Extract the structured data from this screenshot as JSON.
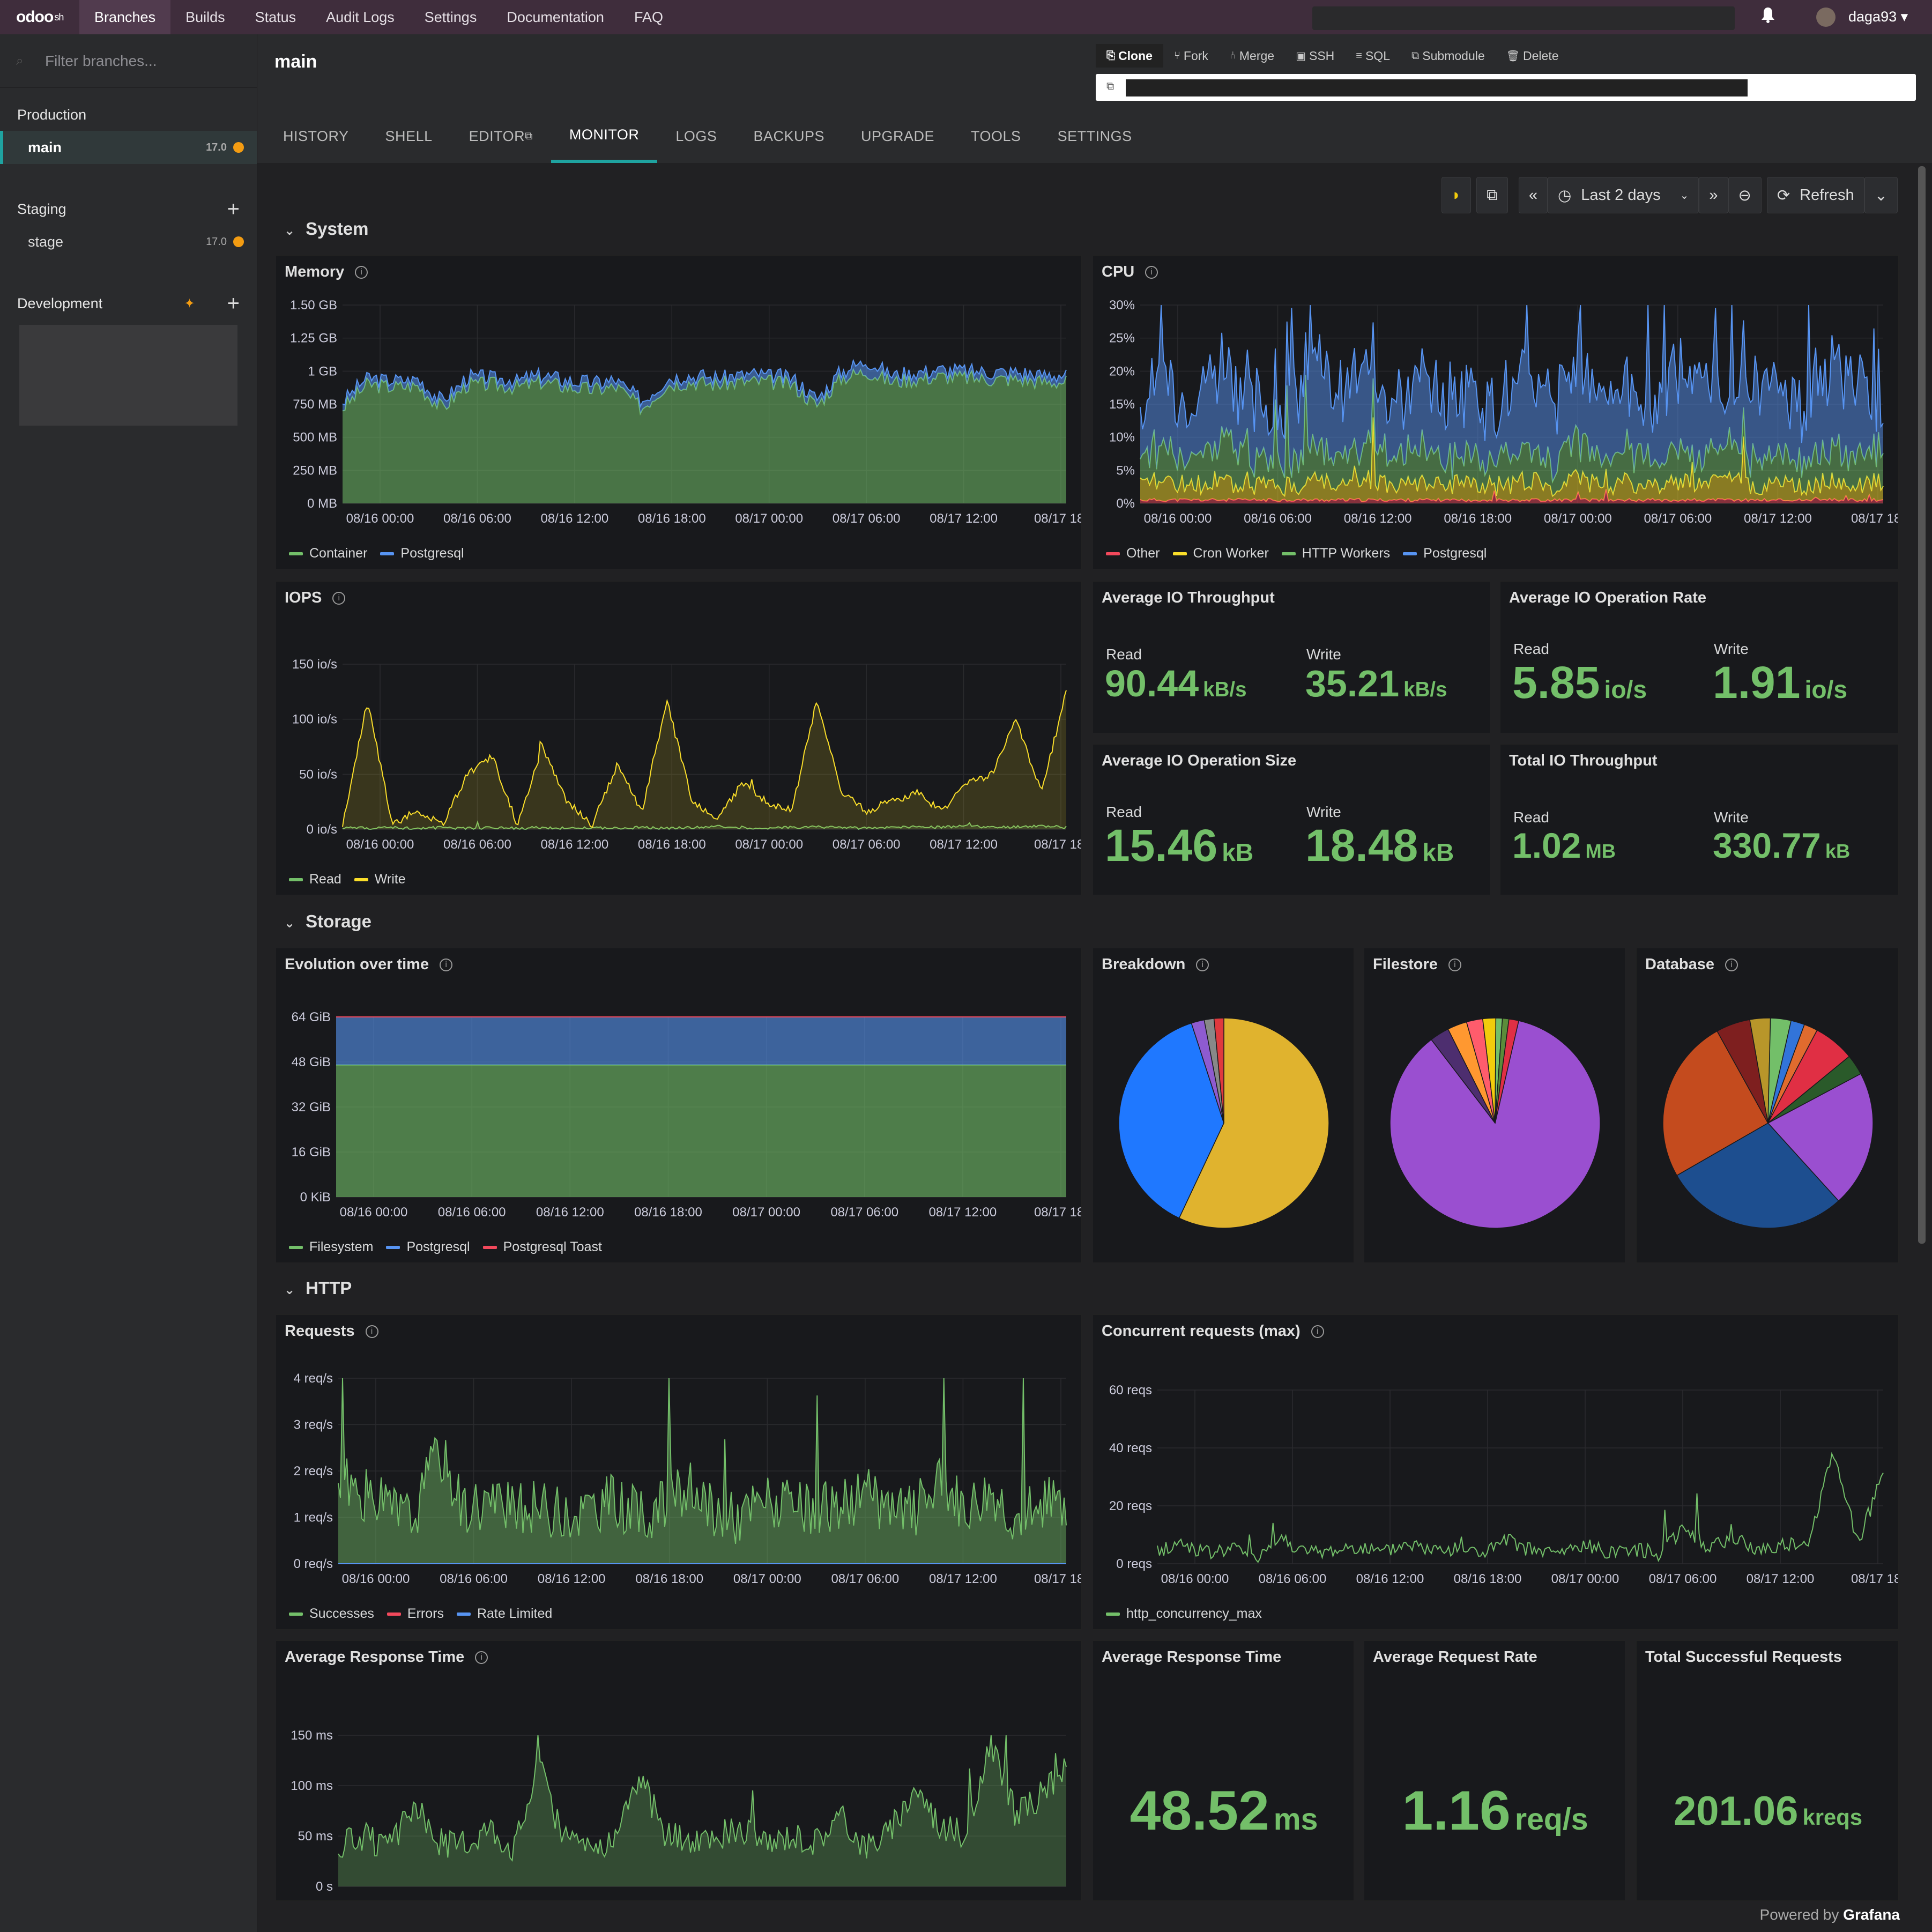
{
  "app": {
    "logo": "odoo",
    "logo_suffix": "sh",
    "user": "daga93 ▾"
  },
  "topnav": [
    "Branches",
    "Builds",
    "Status",
    "Audit Logs",
    "Settings",
    "Documentation",
    "FAQ"
  ],
  "sidebar": {
    "filter_placeholder": "Filter branches...",
    "production": {
      "title": "Production",
      "branches": [
        {
          "name": "main",
          "version": "17.0"
        }
      ]
    },
    "staging": {
      "title": "Staging",
      "branches": [
        {
          "name": "stage",
          "version": "17.0"
        }
      ]
    },
    "development": {
      "title": "Development"
    }
  },
  "header": {
    "title": "main",
    "actions": [
      "Clone",
      "Fork",
      "Merge",
      "SSH",
      "SQL",
      "Submodule",
      "Delete"
    ]
  },
  "tabs": [
    "HISTORY",
    "SHELL",
    "EDITOR",
    "MONITOR",
    "LOGS",
    "BACKUPS",
    "UPGRADE",
    "TOOLS",
    "SETTINGS"
  ],
  "toolbar": {
    "time_range": "Last 2 days",
    "refresh": "Refresh"
  },
  "colors": {
    "green": "#73bf69",
    "blue": "#5794f2",
    "yellow": "#fade2a",
    "red": "#f2495c",
    "accent": "#1fa3a0",
    "orange": "#f39c12"
  },
  "sections": {
    "system": "System",
    "storage": "Storage",
    "http": "HTTP"
  },
  "xticks": [
    "08/16 00:00",
    "08/16 06:00",
    "08/16 12:00",
    "08/16 18:00",
    "08/17 00:00",
    "08/17 06:00",
    "08/17 12:00",
    "08/17 18:"
  ],
  "panels": {
    "memory": {
      "title": "Memory",
      "yticks": [
        "1.50 GB",
        "1.25 GB",
        "1 GB",
        "750 MB",
        "500 MB",
        "250 MB",
        "0 MB"
      ],
      "legend": [
        "Container",
        "Postgresql"
      ]
    },
    "cpu": {
      "title": "CPU",
      "yticks": [
        "30%",
        "25%",
        "20%",
        "15%",
        "10%",
        "5%",
        "0%"
      ],
      "legend": [
        "Other",
        "Cron Worker",
        "HTTP Workers",
        "Postgresql"
      ]
    },
    "iops": {
      "title": "IOPS",
      "yticks": [
        "150 io/s",
        "100 io/s",
        "50 io/s",
        "0 io/s"
      ],
      "legend": [
        "Read",
        "Write"
      ]
    },
    "io_throughput": {
      "title": "Average IO Throughput",
      "read_label": "Read",
      "read": "90.44",
      "read_unit": "kB/s",
      "write_label": "Write",
      "write": "35.21",
      "write_unit": "kB/s"
    },
    "io_rate": {
      "title": "Average IO Operation Rate",
      "read_label": "Read",
      "read": "5.85",
      "read_unit": "io/s",
      "write_label": "Write",
      "write": "1.91",
      "write_unit": "io/s"
    },
    "io_size": {
      "title": "Average IO Operation Size",
      "read_label": "Read",
      "read": "15.46",
      "read_unit": "kB",
      "write_label": "Write",
      "write": "18.48",
      "write_unit": "kB"
    },
    "io_total": {
      "title": "Total IO Throughput",
      "read_label": "Read",
      "read": "1.02",
      "read_unit": "MB",
      "write_label": "Write",
      "write": "330.77",
      "write_unit": "kB"
    },
    "storage_evo": {
      "title": "Evolution over time",
      "yticks": [
        "64 GiB",
        "48 GiB",
        "32 GiB",
        "16 GiB",
        "0 KiB"
      ],
      "legend": [
        "Filesystem",
        "Postgresql",
        "Postgresql Toast"
      ]
    },
    "breakdown": {
      "title": "Breakdown"
    },
    "filestore": {
      "title": "Filestore"
    },
    "database": {
      "title": "Database"
    },
    "requests": {
      "title": "Requests",
      "yticks": [
        "4 req/s",
        "3 req/s",
        "2 req/s",
        "1 req/s",
        "0 req/s"
      ],
      "legend": [
        "Successes",
        "Errors",
        "Rate Limited"
      ]
    },
    "concurrent": {
      "title": "Concurrent requests (max)",
      "yticks": [
        "60 reqs",
        "40 reqs",
        "20 reqs",
        "0 reqs"
      ],
      "legend": [
        "http_concurrency_max"
      ]
    },
    "resp_time_chart": {
      "title": "Average Response Time",
      "yticks": [
        "150 ms",
        "100 ms",
        "50 ms",
        "0 s"
      ]
    },
    "resp_time": {
      "title": "Average Response Time",
      "value": "48.52",
      "unit": "ms"
    },
    "req_rate": {
      "title": "Average Request Rate",
      "value": "1.16",
      "unit": "req/s"
    },
    "total_req": {
      "title": "Total Successful Requests",
      "value": "201.06",
      "unit": "kreqs"
    }
  },
  "footer": {
    "powered": "Powered by",
    "brand": "Grafana"
  },
  "chart_data": [
    {
      "type": "area",
      "title": "Memory",
      "series": [
        {
          "name": "Container",
          "values": [
            0.72,
            0.9,
            0.88,
            0.89,
            0.72,
            0.9,
            0.9,
            0.88,
            0.92,
            0.88,
            0.86,
            0.88,
            0.72,
            0.9,
            0.92,
            0.9,
            0.92,
            0.92,
            0.9,
            0.74,
            0.95,
            1.0,
            0.92,
            0.94,
            0.96,
            0.95,
            0.94,
            0.94,
            0.92,
            0.92
          ]
        },
        {
          "name": "Postgresql",
          "values": [
            0.05,
            0.05,
            0.05,
            0.05,
            0.05,
            0.05,
            0.05,
            0.05,
            0.05,
            0.05,
            0.05,
            0.05,
            0.05,
            0.05,
            0.05,
            0.05,
            0.05,
            0.05,
            0.05,
            0.05,
            0.05,
            0.08,
            0.05,
            0.05,
            0.05,
            0.05,
            0.05,
            0.05,
            0.05,
            0.05
          ]
        }
      ],
      "ylim": [
        0,
        1.5
      ],
      "ylabel": "GB"
    },
    {
      "type": "area",
      "title": "CPU",
      "series": [
        {
          "name": "Postgresql",
          "values": [
            8,
            11,
            9,
            12,
            10,
            7,
            9,
            11,
            10,
            12,
            8,
            10,
            9,
            11,
            8,
            10,
            9,
            10,
            11,
            9,
            8,
            12,
            10,
            9,
            11,
            10,
            9,
            12,
            10,
            8
          ]
        },
        {
          "name": "HTTP Workers",
          "values": [
            4,
            5,
            4,
            6,
            5,
            3,
            4,
            5,
            4,
            5,
            4,
            5,
            4,
            5,
            4,
            5,
            4,
            5,
            4,
            5,
            4,
            5,
            4,
            5,
            4,
            5,
            4,
            5,
            4,
            5
          ]
        },
        {
          "name": "Cron Worker",
          "values": [
            2,
            3,
            2,
            3,
            2,
            2,
            2,
            3,
            2,
            3,
            2,
            3,
            2,
            3,
            2,
            3,
            2,
            3,
            2,
            3,
            2,
            3,
            2,
            3,
            2,
            3,
            2,
            3,
            2,
            3
          ]
        },
        {
          "name": "Other",
          "values": [
            0.5,
            0.5,
            0.5,
            0.5,
            0.5,
            0.5,
            0.5,
            0.5,
            0.5,
            0.5,
            0.5,
            0.5,
            0.5,
            0.5,
            0.5,
            0.5,
            0.5,
            0.5,
            0.5,
            0.5,
            0.5,
            0.5,
            0.5,
            0.5,
            0.5,
            0.5,
            0.5,
            0.5,
            0.5,
            0.5
          ]
        }
      ],
      "ylim": [
        0,
        30
      ],
      "ylabel": "%"
    },
    {
      "type": "line",
      "title": "IOPS",
      "series": [
        {
          "name": "Read",
          "values": [
            2,
            1,
            2,
            1,
            2,
            1,
            2,
            1,
            2,
            1,
            2,
            1,
            2,
            1,
            2,
            3,
            2,
            1,
            2,
            3,
            2,
            1,
            2,
            3,
            2,
            4,
            2,
            3,
            4,
            2
          ]
        },
        {
          "name": "Write",
          "values": [
            4,
            140,
            6,
            20,
            5,
            60,
            80,
            5,
            90,
            30,
            5,
            70,
            20,
            140,
            30,
            10,
            50,
            30,
            20,
            140,
            40,
            20,
            30,
            40,
            20,
            50,
            60,
            120,
            40,
            150
          ]
        }
      ],
      "ylim": [
        0,
        180
      ]
    },
    {
      "type": "area",
      "title": "Evolution over time",
      "series": [
        {
          "name": "Filesystem",
          "values": [
            47,
            47,
            47,
            47,
            47,
            47,
            47,
            47
          ]
        },
        {
          "name": "Postgresql",
          "values": [
            29,
            29,
            29,
            29,
            29,
            29,
            29,
            29
          ]
        },
        {
          "name": "Postgresql Toast",
          "values": [
            1.5,
            1.5,
            1.5,
            1.5,
            1.5,
            1.5,
            1.5,
            1.5
          ]
        }
      ],
      "ylim": [
        0,
        72
      ]
    },
    {
      "type": "pie",
      "title": "Breakdown",
      "values": [
        57,
        38,
        2,
        1.5,
        1.5
      ],
      "colors": [
        "#e0b32e",
        "#1f78ff",
        "#8e5bd0",
        "#888888",
        "#e0393e"
      ]
    },
    {
      "type": "pie",
      "title": "Filestore",
      "values": [
        86,
        3,
        3,
        2.5,
        2,
        1,
        1,
        1.5
      ],
      "colors": [
        "#9a4fd0",
        "#4d2e6f",
        "#ff9830",
        "#ff5c6c",
        "#f2cc0c",
        "#73bf69",
        "#5b8c3a",
        "#e02f44"
      ]
    },
    {
      "type": "pie",
      "title": "Database",
      "values": [
        20,
        27,
        24,
        5,
        3,
        3,
        2,
        2,
        6,
        3
      ],
      "colors": [
        "#9a4fd0",
        "#1d4e8f",
        "#c44b1e",
        "#7e1f1f",
        "#b8962a",
        "#73bf69",
        "#3274d9",
        "#e06b2e",
        "#e02f44",
        "#2a5a2a"
      ]
    },
    {
      "type": "area",
      "title": "Requests",
      "series": [
        {
          "name": "Successes",
          "values": [
            1.8,
            1.5,
            1.2,
            1.0,
            2.5,
            1.2,
            1.4,
            1.1,
            1.3,
            1.0,
            1.2,
            1.4,
            1.0,
            1.3,
            1.6,
            1.1,
            1.0,
            1.4,
            1.2,
            1.1,
            1.3,
            1.5,
            1.1,
            1.2,
            1.8,
            1.2,
            1.6,
            1.0,
            1.3,
            1.4
          ]
        },
        {
          "name": "Errors",
          "values": [
            0,
            0,
            0,
            0,
            0,
            0,
            0,
            0,
            0,
            0,
            0,
            0,
            0,
            0,
            0,
            0,
            0,
            0,
            0,
            0,
            0,
            0,
            0,
            0,
            0,
            0,
            0,
            0,
            0,
            0
          ]
        },
        {
          "name": "Rate Limited",
          "values": [
            0,
            0,
            0,
            0,
            0,
            0,
            0,
            0,
            0,
            0,
            0,
            0,
            0,
            0,
            0,
            0,
            0,
            0,
            0,
            0,
            0,
            0,
            0,
            0,
            0,
            0,
            0,
            0,
            0,
            0
          ]
        }
      ],
      "ylim": [
        0,
        4.4
      ]
    },
    {
      "type": "line",
      "title": "Concurrent requests (max)",
      "series": [
        {
          "name": "http_concurrency_max",
          "values": [
            5,
            8,
            4,
            6,
            3,
            10,
            4,
            5,
            7,
            4,
            8,
            5,
            6,
            4,
            9,
            5,
            4,
            7,
            5,
            6,
            4,
            14,
            6,
            10,
            5,
            8,
            6,
            45,
            8,
            35
          ]
        }
      ],
      "ylim": [
        0,
        68
      ]
    },
    {
      "type": "line",
      "title": "Average Response Time",
      "series": [
        {
          "name": "",
          "values": [
            40,
            50,
            35,
            80,
            45,
            40,
            60,
            38,
            120,
            45,
            50,
            40,
            110,
            55,
            42,
            48,
            60,
            40,
            52,
            45,
            70,
            40,
            55,
            100,
            60,
            50,
            140,
            70,
            90,
            120
          ]
        }
      ],
      "ylim": [
        0,
        170
      ]
    }
  ]
}
